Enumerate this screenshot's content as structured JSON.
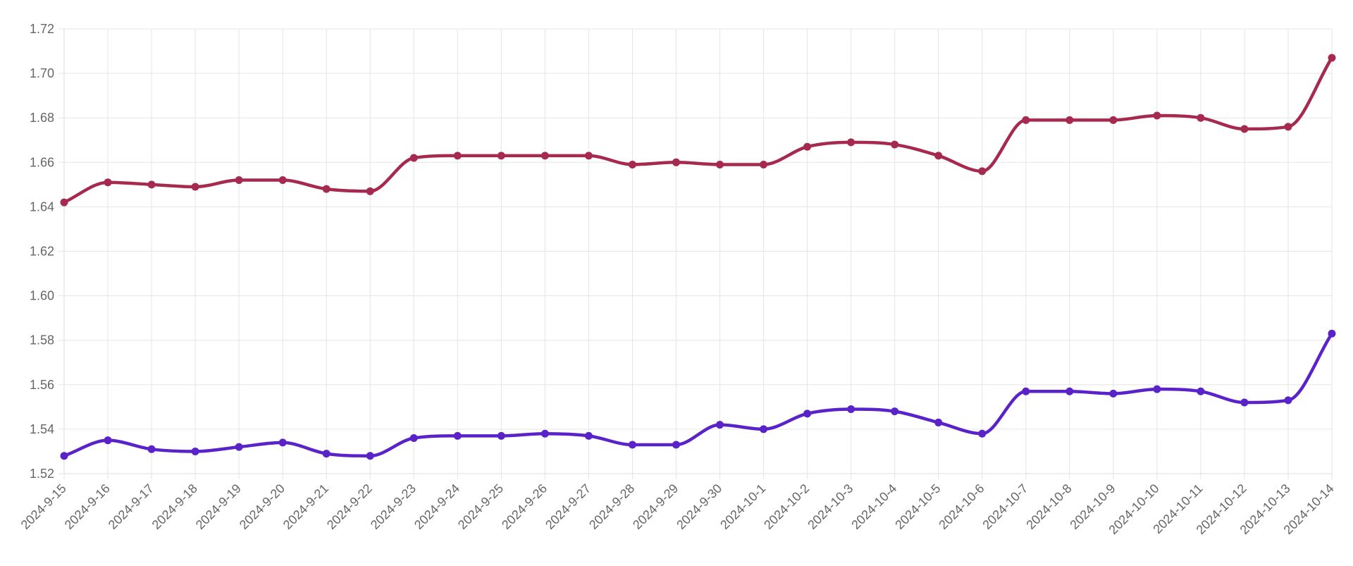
{
  "chart_data": {
    "type": "line",
    "title": "",
    "xlabel": "",
    "ylabel": "",
    "ylim": [
      1.52,
      1.72
    ],
    "yticks": [
      "1.52",
      "1.54",
      "1.56",
      "1.58",
      "1.60",
      "1.62",
      "1.64",
      "1.66",
      "1.68",
      "1.70",
      "1.72"
    ],
    "grid": true,
    "legend": "none",
    "categories": [
      "2024-9-15",
      "2024-9-16",
      "2024-9-17",
      "2024-9-18",
      "2024-9-19",
      "2024-9-20",
      "2024-9-21",
      "2024-9-22",
      "2024-9-23",
      "2024-9-24",
      "2024-9-25",
      "2024-9-26",
      "2024-9-27",
      "2024-9-28",
      "2024-9-29",
      "2024-9-30",
      "2024-10-1",
      "2024-10-2",
      "2024-10-3",
      "2024-10-4",
      "2024-10-5",
      "2024-10-6",
      "2024-10-7",
      "2024-10-8",
      "2024-10-9",
      "2024-10-10",
      "2024-10-11",
      "2024-10-12",
      "2024-10-13",
      "2024-10-14"
    ],
    "series": [
      {
        "color": "#a6294f",
        "values": [
          1.642,
          1.651,
          1.65,
          1.649,
          1.652,
          1.652,
          1.648,
          1.647,
          1.662,
          1.663,
          1.663,
          1.663,
          1.663,
          1.659,
          1.66,
          1.659,
          1.659,
          1.667,
          1.669,
          1.668,
          1.663,
          1.656,
          1.679,
          1.679,
          1.679,
          1.681,
          1.68,
          1.675,
          1.676,
          1.707
        ]
      },
      {
        "color": "#5a22c9",
        "values": [
          1.528,
          1.535,
          1.531,
          1.53,
          1.532,
          1.534,
          1.529,
          1.528,
          1.536,
          1.537,
          1.537,
          1.538,
          1.537,
          1.533,
          1.533,
          1.542,
          1.54,
          1.547,
          1.549,
          1.548,
          1.543,
          1.538,
          1.557,
          1.557,
          1.556,
          1.558,
          1.557,
          1.552,
          1.553,
          1.583
        ]
      }
    ]
  }
}
